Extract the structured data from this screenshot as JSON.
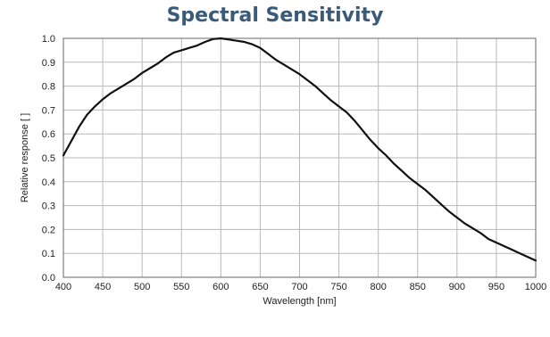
{
  "chart_data": {
    "type": "line",
    "title": "Spectral Sensitivity",
    "xlabel": "Wavelength [nm]",
    "ylabel": "Relative response [ ]",
    "xlim": [
      400,
      1000
    ],
    "ylim": [
      0.0,
      1.0
    ],
    "xticks": [
      "400",
      "450",
      "500",
      "550",
      "600",
      "650",
      "700",
      "750",
      "800",
      "850",
      "900",
      "950",
      "1000"
    ],
    "yticks": [
      "0.0",
      "0.1",
      "0.2",
      "0.3",
      "0.4",
      "0.5",
      "0.6",
      "0.7",
      "0.8",
      "0.9",
      "1.0"
    ],
    "grid": true,
    "legend": "none",
    "colors": {
      "title": "#3a5a7a",
      "line": "#111111",
      "grid": "#b8b8b8",
      "frame": "#666666"
    },
    "series": [
      {
        "x": [
          400,
          410,
          420,
          430,
          440,
          450,
          460,
          470,
          480,
          490,
          500,
          510,
          520,
          530,
          540,
          550,
          560,
          570,
          580,
          590,
          600,
          610,
          620,
          630,
          640,
          650,
          660,
          670,
          680,
          690,
          700,
          710,
          720,
          730,
          740,
          750,
          760,
          770,
          780,
          790,
          800,
          810,
          820,
          830,
          840,
          850,
          860,
          870,
          880,
          890,
          900,
          910,
          920,
          930,
          940,
          950,
          960,
          970,
          980,
          990,
          1000
        ],
        "values": [
          0.51,
          0.57,
          0.63,
          0.68,
          0.715,
          0.745,
          0.77,
          0.79,
          0.81,
          0.83,
          0.855,
          0.875,
          0.895,
          0.92,
          0.94,
          0.95,
          0.96,
          0.97,
          0.985,
          0.997,
          1.0,
          0.995,
          0.99,
          0.985,
          0.975,
          0.96,
          0.935,
          0.91,
          0.89,
          0.87,
          0.85,
          0.825,
          0.8,
          0.77,
          0.74,
          0.715,
          0.69,
          0.655,
          0.615,
          0.575,
          0.54,
          0.51,
          0.475,
          0.445,
          0.415,
          0.39,
          0.365,
          0.335,
          0.305,
          0.275,
          0.25,
          0.225,
          0.205,
          0.185,
          0.16,
          0.145,
          0.13,
          0.115,
          0.1,
          0.085,
          0.07
        ]
      }
    ]
  }
}
